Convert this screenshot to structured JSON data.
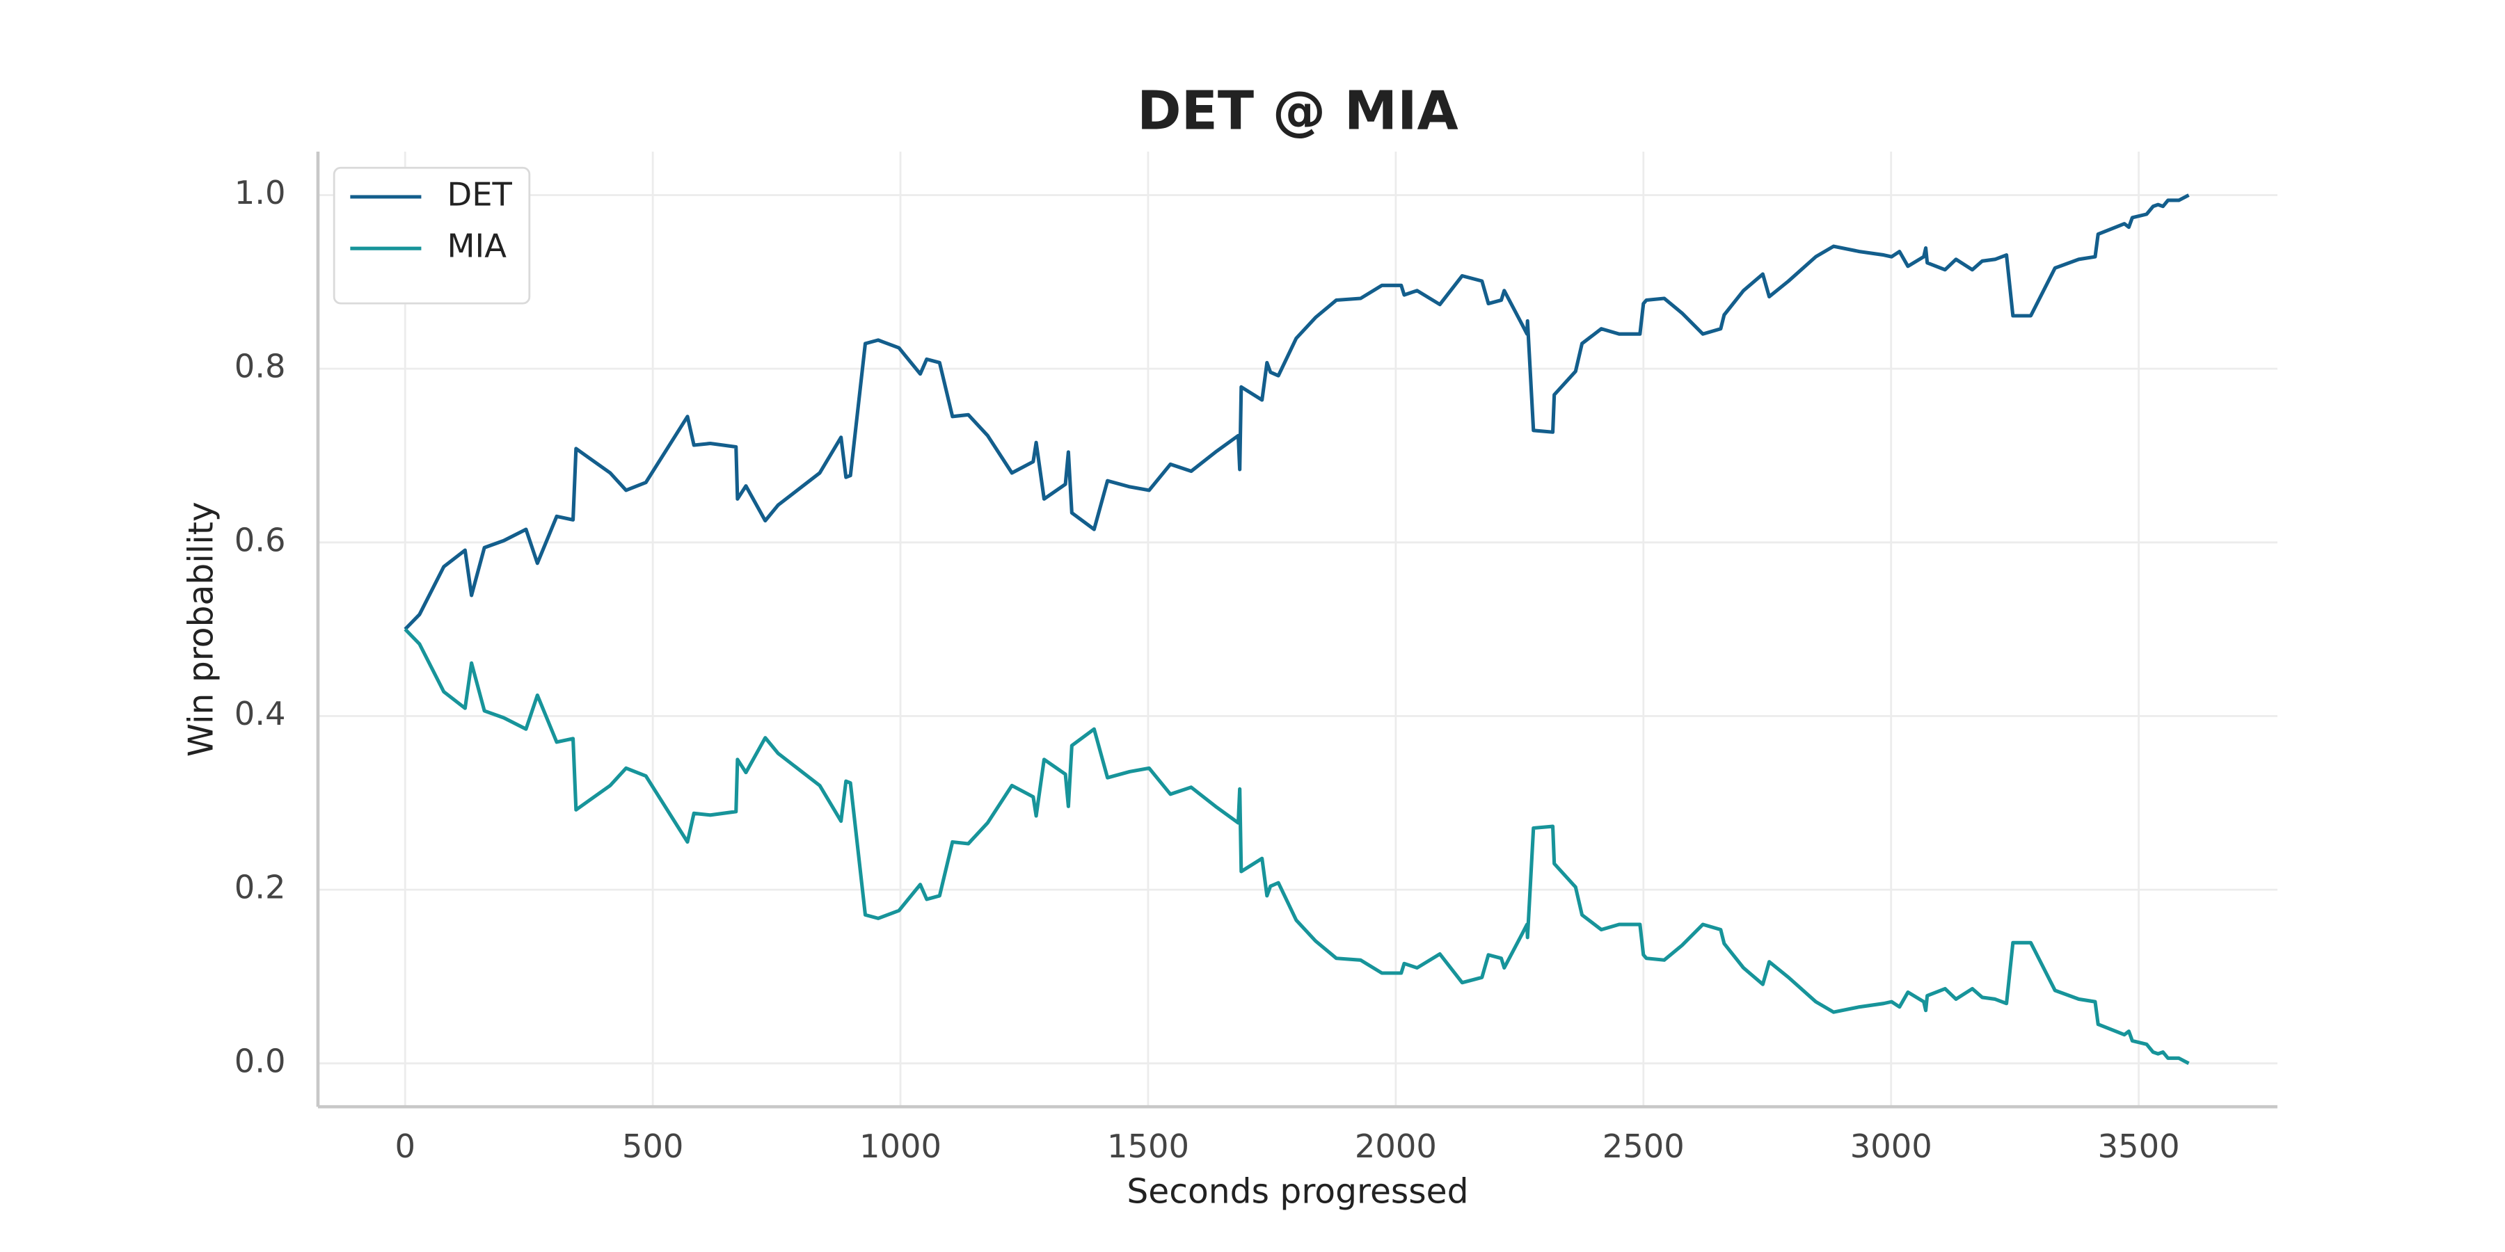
{
  "chart_data": {
    "type": "line",
    "title": "DET @ MIA",
    "x_label": "Seconds progressed",
    "y_label": "Win probability",
    "xlim": [
      -176,
      3780
    ],
    "ylim": [
      -0.05,
      1.05
    ],
    "xticks": [
      0,
      500,
      1000,
      1500,
      2000,
      2500,
      3000,
      3500
    ],
    "yticks": [
      {
        "value": 0,
        "label": "0.0"
      },
      {
        "value": 0.2,
        "label": "0.2"
      },
      {
        "value": 0.4,
        "label": "0.4"
      },
      {
        "value": 0.6,
        "label": "0.6"
      },
      {
        "value": 0.8,
        "label": "0.8"
      },
      {
        "value": 1,
        "label": "1.0"
      }
    ],
    "grid": true,
    "legend": "upper left",
    "x": [
      0,
      29,
      78,
      121,
      134,
      160,
      199,
      244,
      267,
      306,
      339,
      345,
      372,
      414,
      446,
      486,
      570,
      583,
      616,
      668,
      671,
      688,
      727,
      753,
      837,
      880,
      890,
      899,
      929,
      955,
      997,
      1040,
      1053,
      1079,
      1105,
      1137,
      1176,
      1225,
      1268,
      1274,
      1290,
      1333,
      1339,
      1346,
      1391,
      1418,
      1463,
      1502,
      1545,
      1587,
      1636,
      1682,
      1685,
      1688,
      1730,
      1740,
      1747,
      1763,
      1799,
      1838,
      1880,
      1929,
      1972,
      2011,
      2017,
      2043,
      2089,
      2134,
      2174,
      2187,
      2213,
      2219,
      2255,
      2265,
      2266,
      2278,
      2317,
      2320,
      2363,
      2376,
      2415,
      2451,
      2493,
      2500,
      2506,
      2542,
      2578,
      2620,
      2656,
      2663,
      2702,
      2741,
      2754,
      2793,
      2848,
      2884,
      2936,
      2985,
      3001,
      3017,
      3034,
      3066,
      3070,
      3073,
      3109,
      3131,
      3164,
      3184,
      3210,
      3233,
      3246,
      3282,
      3331,
      3379,
      3412,
      3418,
      3471,
      3480,
      3487,
      3516,
      3529,
      3539,
      3549,
      3559,
      3581,
      3601
    ],
    "series": [
      {
        "name": "DET",
        "color": "#135e8c",
        "values": [
          0.5,
          0.517,
          0.572,
          0.591,
          0.539,
          0.594,
          0.602,
          0.615,
          0.576,
          0.63,
          0.626,
          0.708,
          0.697,
          0.68,
          0.66,
          0.669,
          0.745,
          0.712,
          0.714,
          0.71,
          0.65,
          0.665,
          0.625,
          0.643,
          0.68,
          0.721,
          0.675,
          0.677,
          0.829,
          0.833,
          0.824,
          0.794,
          0.811,
          0.807,
          0.745,
          0.747,
          0.723,
          0.68,
          0.693,
          0.715,
          0.65,
          0.667,
          0.704,
          0.634,
          0.615,
          0.671,
          0.664,
          0.66,
          0.69,
          0.682,
          0.704,
          0.723,
          0.684,
          0.779,
          0.764,
          0.807,
          0.796,
          0.792,
          0.835,
          0.859,
          0.879,
          0.881,
          0.896,
          0.896,
          0.885,
          0.89,
          0.874,
          0.907,
          0.901,
          0.875,
          0.879,
          0.89,
          0.851,
          0.84,
          0.855,
          0.729,
          0.727,
          0.77,
          0.797,
          0.829,
          0.846,
          0.84,
          0.84,
          0.875,
          0.879,
          0.881,
          0.864,
          0.84,
          0.846,
          0.862,
          0.89,
          0.909,
          0.883,
          0.901,
          0.929,
          0.941,
          0.935,
          0.931,
          0.929,
          0.935,
          0.918,
          0.929,
          0.939,
          0.922,
          0.914,
          0.926,
          0.914,
          0.924,
          0.926,
          0.931,
          0.861,
          0.861,
          0.916,
          0.926,
          0.929,
          0.955,
          0.967,
          0.963,
          0.974,
          0.978,
          0.987,
          0.989,
          0.987,
          0.994,
          0.994,
          1.0
        ]
      },
      {
        "name": "MIA",
        "color": "#17949a",
        "values": [
          0.5,
          0.483,
          0.428,
          0.409,
          0.461,
          0.406,
          0.398,
          0.385,
          0.424,
          0.37,
          0.374,
          0.292,
          0.303,
          0.32,
          0.34,
          0.331,
          0.255,
          0.288,
          0.286,
          0.29,
          0.35,
          0.335,
          0.375,
          0.357,
          0.32,
          0.279,
          0.325,
          0.323,
          0.171,
          0.167,
          0.176,
          0.206,
          0.189,
          0.193,
          0.255,
          0.253,
          0.277,
          0.32,
          0.307,
          0.285,
          0.35,
          0.333,
          0.296,
          0.366,
          0.385,
          0.329,
          0.336,
          0.34,
          0.31,
          0.318,
          0.296,
          0.277,
          0.316,
          0.221,
          0.236,
          0.193,
          0.204,
          0.208,
          0.165,
          0.141,
          0.121,
          0.119,
          0.104,
          0.104,
          0.115,
          0.11,
          0.126,
          0.093,
          0.099,
          0.125,
          0.121,
          0.11,
          0.149,
          0.16,
          0.145,
          0.271,
          0.273,
          0.23,
          0.203,
          0.171,
          0.154,
          0.16,
          0.16,
          0.125,
          0.121,
          0.119,
          0.136,
          0.16,
          0.154,
          0.138,
          0.11,
          0.091,
          0.117,
          0.099,
          0.071,
          0.059,
          0.065,
          0.069,
          0.071,
          0.065,
          0.082,
          0.071,
          0.061,
          0.078,
          0.086,
          0.074,
          0.086,
          0.076,
          0.074,
          0.069,
          0.139,
          0.139,
          0.084,
          0.074,
          0.071,
          0.045,
          0.033,
          0.037,
          0.026,
          0.022,
          0.013,
          0.011,
          0.013,
          0.006,
          0.006,
          0.0
        ]
      }
    ]
  }
}
